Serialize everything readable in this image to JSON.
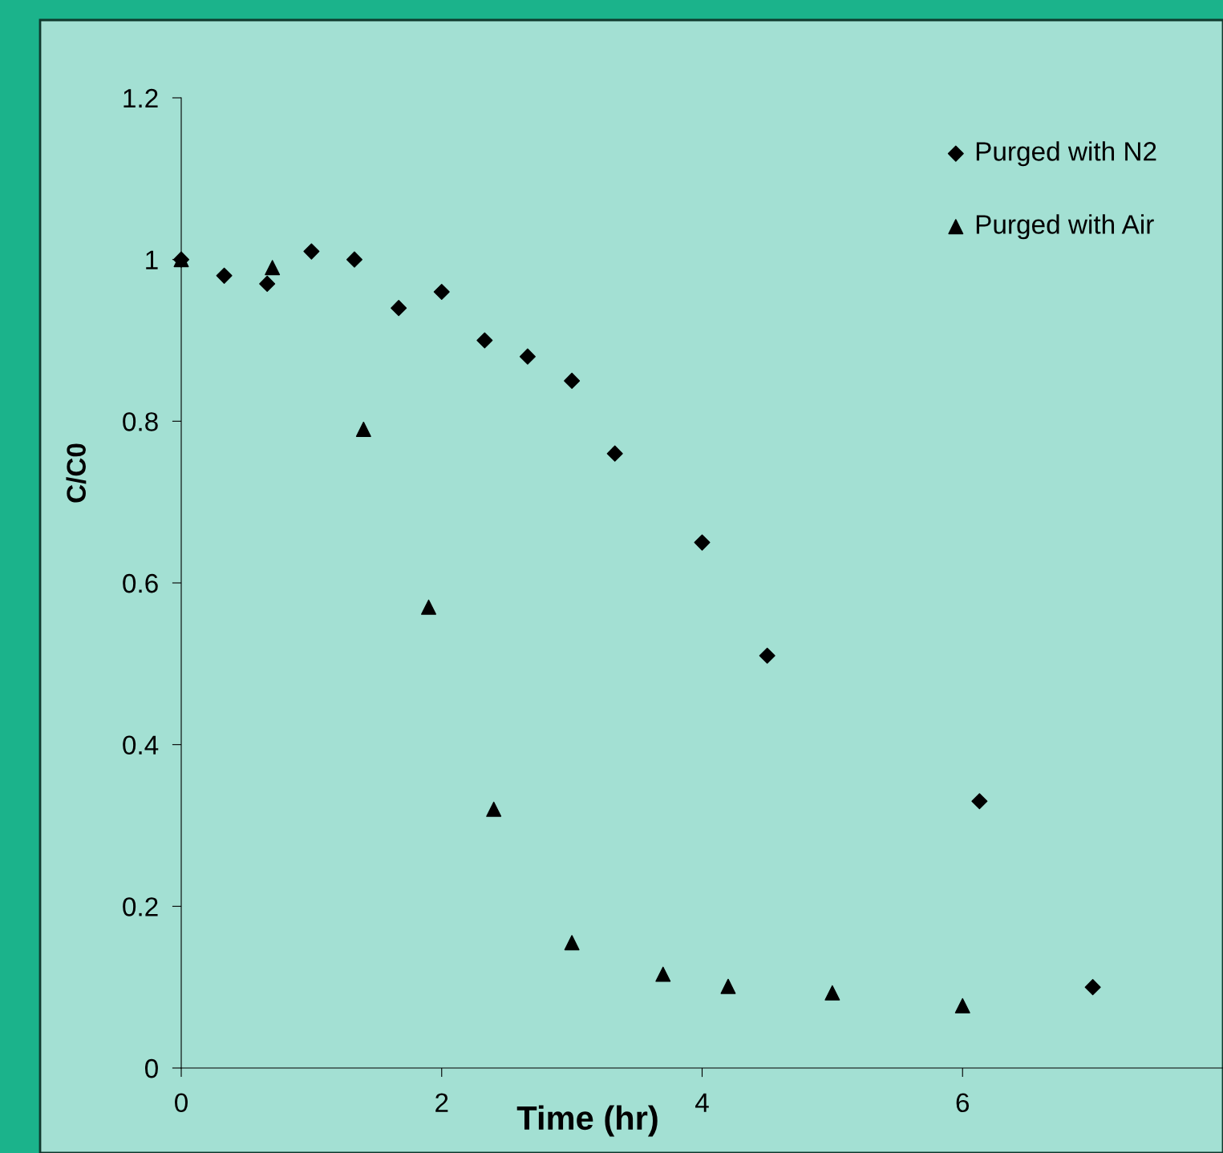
{
  "chart_data": {
    "type": "scatter",
    "xlabel": "Time (hr)",
    "ylabel": "C/C0",
    "xlim": [
      0,
      8
    ],
    "xticks": [
      0,
      2,
      4,
      6
    ],
    "ylim": [
      0,
      1.2
    ],
    "yticks": [
      0,
      0.2,
      0.4,
      0.6,
      0.8,
      1,
      1.2
    ],
    "grid": false,
    "legend": "top right",
    "series": [
      {
        "name": "Purged with N2",
        "color": "#000000",
        "marker": "diamond",
        "x": [
          0,
          0.33,
          0.66,
          1.0,
          1.33,
          1.67,
          2.0,
          2.33,
          2.66,
          3.0,
          3.33,
          4.0,
          4.5,
          6.13,
          7.0
        ],
        "values": [
          1.0,
          0.98,
          0.97,
          1.01,
          1.0,
          0.94,
          0.96,
          0.9,
          0.88,
          0.85,
          0.76,
          0.65,
          0.51,
          0.33,
          0.1
        ]
      },
      {
        "name": "Purged with Air",
        "color": "#000000",
        "marker": "triangle",
        "x": [
          0,
          0.7,
          1.4,
          1.9,
          2.4,
          3.0,
          3.7,
          4.2,
          5.0,
          6.0
        ],
        "values": [
          1.0,
          0.99,
          0.79,
          0.57,
          0.32,
          0.155,
          0.116,
          0.101,
          0.093,
          0.077
        ]
      }
    ]
  }
}
